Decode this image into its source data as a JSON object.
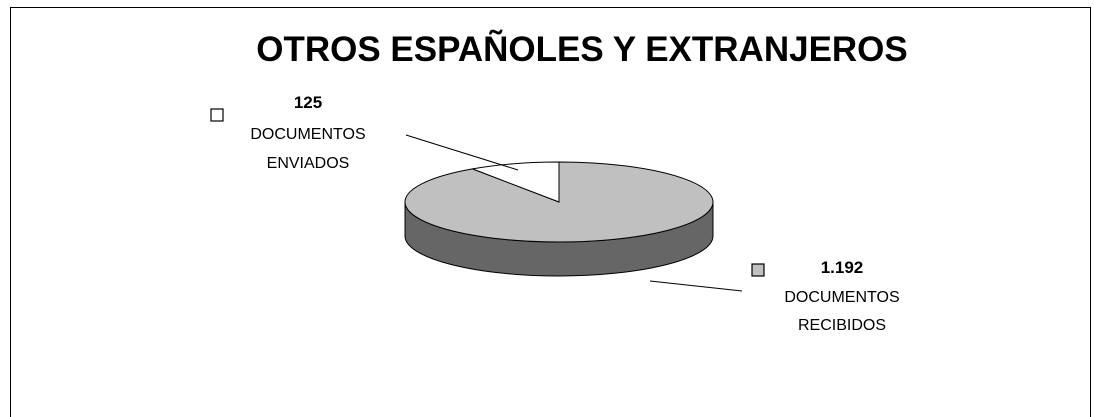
{
  "chart_data": {
    "type": "pie",
    "title": "OTROS ESPAÑOLES Y EXTRANJEROS",
    "slices": [
      {
        "value_label": "125",
        "label_line1": "DOCUMENTOS",
        "label_line2": "ENVIADOS",
        "value": 125,
        "color": "#ffffff"
      },
      {
        "value_label": "1.192",
        "label_line1": "DOCUMENTOS",
        "label_line2": "RECIBIDOS",
        "value": 1192,
        "color": "#c0c0c0"
      }
    ],
    "side_color": "#666666",
    "legend": "beside-slices"
  }
}
